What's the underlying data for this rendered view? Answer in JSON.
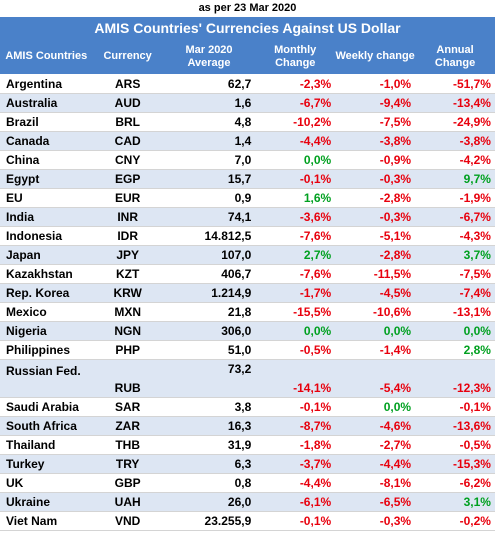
{
  "as_of": "as per 23 Mar 2020",
  "title": "AMIS Countries' Currencies Against US Dollar",
  "headers": {
    "country": "AMIS Countries",
    "currency": "Currency",
    "avg": "Mar 2020 Average",
    "monthly": "Monthly Change",
    "weekly": "Weekly change",
    "annual": "Annual Change"
  },
  "colors": {
    "header_bg": "#4a81c9",
    "alt_row": "#dde6f3",
    "negative": "#e8000d",
    "positive": "#00a020"
  },
  "rows": [
    {
      "country": "Argentina",
      "currency": "ARS",
      "avg": "62,7",
      "monthly": "-2,3%",
      "weekly": "-1,0%",
      "annual": "-51,7%"
    },
    {
      "country": "Australia",
      "currency": "AUD",
      "avg": "1,6",
      "monthly": "-6,7%",
      "weekly": "-9,4%",
      "annual": "-13,4%"
    },
    {
      "country": "Brazil",
      "currency": "BRL",
      "avg": "4,8",
      "monthly": "-10,2%",
      "weekly": "-7,5%",
      "annual": "-24,9%"
    },
    {
      "country": "Canada",
      "currency": "CAD",
      "avg": "1,4",
      "monthly": "-4,4%",
      "weekly": "-3,8%",
      "annual": "-3,8%"
    },
    {
      "country": "China",
      "currency": "CNY",
      "avg": "7,0",
      "monthly": "0,0%",
      "weekly": "-0,9%",
      "annual": "-4,2%"
    },
    {
      "country": "Egypt",
      "currency": "EGP",
      "avg": "15,7",
      "monthly": "-0,1%",
      "weekly": "-0,3%",
      "annual": "9,7%"
    },
    {
      "country": "EU",
      "currency": "EUR",
      "avg": "0,9",
      "monthly": "1,6%",
      "weekly": "-2,8%",
      "annual": "-1,9%"
    },
    {
      "country": "India",
      "currency": "INR",
      "avg": "74,1",
      "monthly": "-3,6%",
      "weekly": "-0,3%",
      "annual": "-6,7%"
    },
    {
      "country": "Indonesia",
      "currency": "IDR",
      "avg": "14.812,5",
      "monthly": "-7,6%",
      "weekly": "-5,1%",
      "annual": "-4,3%"
    },
    {
      "country": "Japan",
      "currency": "JPY",
      "avg": "107,0",
      "monthly": "2,7%",
      "weekly": "-2,8%",
      "annual": "3,7%"
    },
    {
      "country": "Kazakhstan",
      "currency": "KZT",
      "avg": "406,7",
      "monthly": "-7,6%",
      "weekly": "-11,5%",
      "annual": "-7,5%"
    },
    {
      "country": "Rep. Korea",
      "currency": "KRW",
      "avg": "1.214,9",
      "monthly": "-1,7%",
      "weekly": "-4,5%",
      "annual": "-7,4%"
    },
    {
      "country": "Mexico",
      "currency": "MXN",
      "avg": "21,8",
      "monthly": "-15,5%",
      "weekly": "-10,6%",
      "annual": "-13,1%"
    },
    {
      "country": "Nigeria",
      "currency": "NGN",
      "avg": "306,0",
      "monthly": "0,0%",
      "weekly": "0,0%",
      "annual": "0,0%"
    },
    {
      "country": "Philippines",
      "currency": "PHP",
      "avg": "51,0",
      "monthly": "-0,5%",
      "weekly": "-1,4%",
      "annual": "2,8%"
    },
    {
      "country": "Russian Fed.",
      "currency": "RUB",
      "avg": "73,2",
      "monthly": "-14,1%",
      "weekly": "-5,4%",
      "annual": "-12,3%",
      "tall": true
    },
    {
      "country": "Saudi Arabia",
      "currency": "SAR",
      "avg": "3,8",
      "monthly": "-0,1%",
      "weekly": "0,0%",
      "annual": "-0,1%"
    },
    {
      "country": "South Africa",
      "currency": "ZAR",
      "avg": "16,3",
      "monthly": "-8,7%",
      "weekly": "-4,6%",
      "annual": "-13,6%"
    },
    {
      "country": "Thailand",
      "currency": "THB",
      "avg": "31,9",
      "monthly": "-1,8%",
      "weekly": "-2,7%",
      "annual": "-0,5%"
    },
    {
      "country": "Turkey",
      "currency": "TRY",
      "avg": "6,3",
      "monthly": "-3,7%",
      "weekly": "-4,4%",
      "annual": "-15,3%"
    },
    {
      "country": "UK",
      "currency": "GBP",
      "avg": "0,8",
      "monthly": "-4,4%",
      "weekly": "-8,1%",
      "annual": "-6,2%"
    },
    {
      "country": "Ukraine",
      "currency": "UAH",
      "avg": "26,0",
      "monthly": "-6,1%",
      "weekly": "-6,5%",
      "annual": "3,1%"
    },
    {
      "country": "Viet Nam",
      "currency": "VND",
      "avg": "23.255,9",
      "monthly": "-0,1%",
      "weekly": "-0,3%",
      "annual": "-0,2%"
    }
  ]
}
